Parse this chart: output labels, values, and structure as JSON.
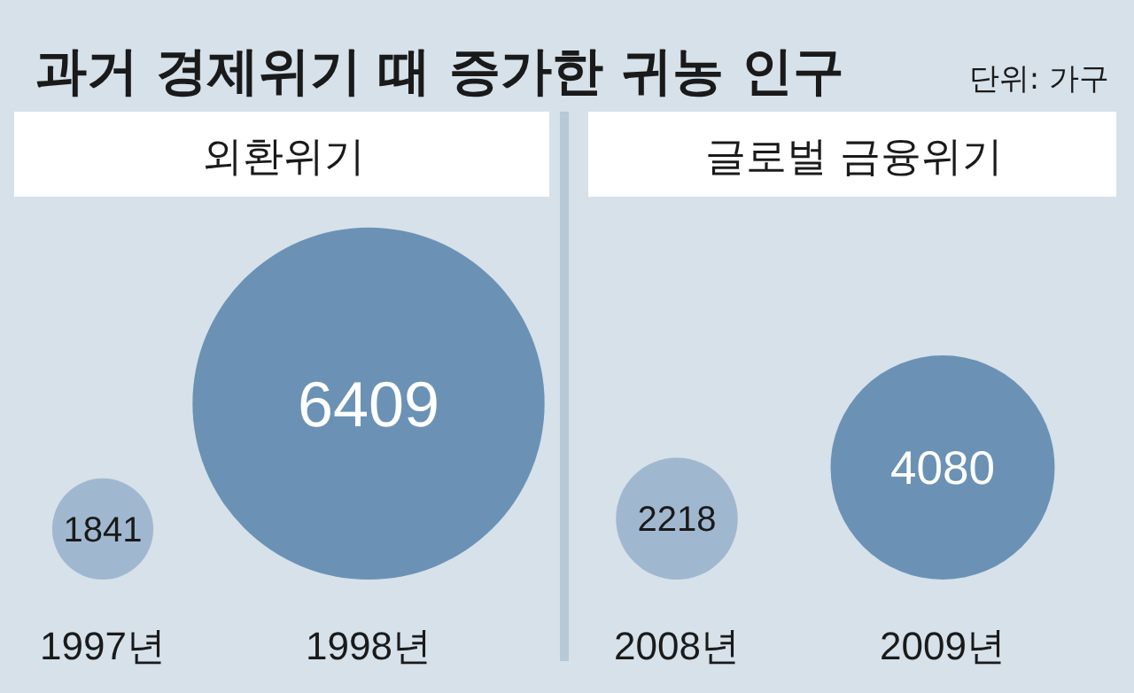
{
  "chart_data": [
    {
      "type": "other",
      "title": "과거 경제위기 때 증가한 귀농 인구",
      "subtitle": "단위: 가구"
    },
    {
      "type": "other",
      "title": "외환위기",
      "categories": [
        "1997년",
        "1998년"
      ],
      "values": [
        1841,
        6409
      ],
      "colors": [
        "#a0b8cf",
        "#6b92b5"
      ],
      "data_labels": true
    },
    {
      "type": "other",
      "title": "글로벌 금융위기",
      "categories": [
        "2008년",
        "2009년"
      ],
      "values": [
        2218,
        4080
      ],
      "colors": [
        "#a0b8cf",
        "#6b92b5"
      ],
      "data_labels": true
    }
  ]
}
